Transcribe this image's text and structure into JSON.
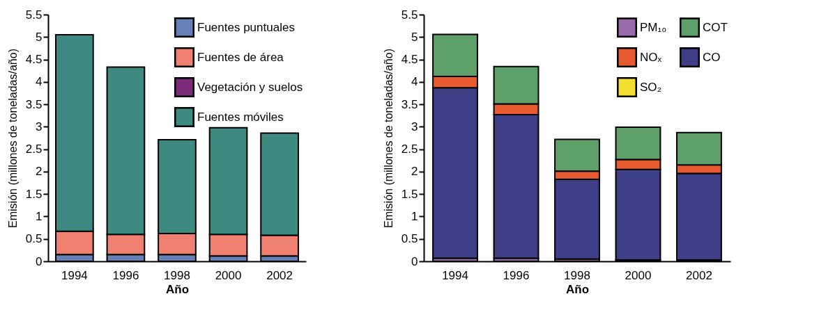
{
  "chart_data": [
    {
      "type": "bar",
      "stacked": true,
      "xlabel": "Año",
      "ylabel": "Emisión (millones de toneladas/año)",
      "categories": [
        "1994",
        "1996",
        "1998",
        "2000",
        "2002"
      ],
      "ylim": [
        0,
        5.5
      ],
      "yticks": [
        0,
        0.5,
        1,
        1.5,
        2,
        2.5,
        3,
        3.5,
        4,
        4.5,
        5,
        5.5
      ],
      "grid": false,
      "legend": "top right",
      "series": [
        {
          "name": "Fuentes puntuales",
          "color": "#6680b8",
          "values": [
            0.15,
            0.15,
            0.15,
            0.12,
            0.12
          ]
        },
        {
          "name": "Fuentes de área",
          "color": "#f08070",
          "values": [
            0.52,
            0.45,
            0.47,
            0.48,
            0.46
          ]
        },
        {
          "name": "Vegetación y suelos",
          "color": "#7b2a78",
          "values": [
            null,
            null,
            null,
            null,
            null
          ]
        },
        {
          "name": "Fuentes móviles",
          "color": "#3e8a80",
          "values": [
            4.38,
            3.73,
            2.09,
            2.38,
            2.28
          ]
        }
      ]
    },
    {
      "type": "bar",
      "stacked": true,
      "xlabel": "Año",
      "ylabel": "Emisión (millones de toneladas/año)",
      "categories": [
        "1994",
        "1996",
        "1998",
        "2000",
        "2002"
      ],
      "ylim": [
        0,
        5.5
      ],
      "yticks": [
        0,
        0.5,
        1,
        1.5,
        2,
        2.5,
        3,
        3.5,
        4,
        4.5,
        5,
        5.5
      ],
      "grid": false,
      "legend": "top right",
      "series": [
        {
          "name": "PM₁₀",
          "color": "#9a6aaa",
          "values": [
            0.07,
            0.07,
            0.05,
            0.03,
            0.03
          ]
        },
        {
          "name": "SO₂",
          "color": "#f2e030",
          "values": [
            null,
            null,
            null,
            null,
            null
          ]
        },
        {
          "name": "CO",
          "color": "#3f3f88",
          "values": [
            3.8,
            3.2,
            1.78,
            2.02,
            1.93
          ]
        },
        {
          "name": "NOₓ",
          "color": "#e85a30",
          "values": [
            0.25,
            0.24,
            0.18,
            0.22,
            0.19
          ]
        },
        {
          "name": "COT",
          "color": "#5fa06a",
          "values": [
            0.94,
            0.83,
            0.71,
            0.72,
            0.72
          ]
        }
      ]
    }
  ]
}
